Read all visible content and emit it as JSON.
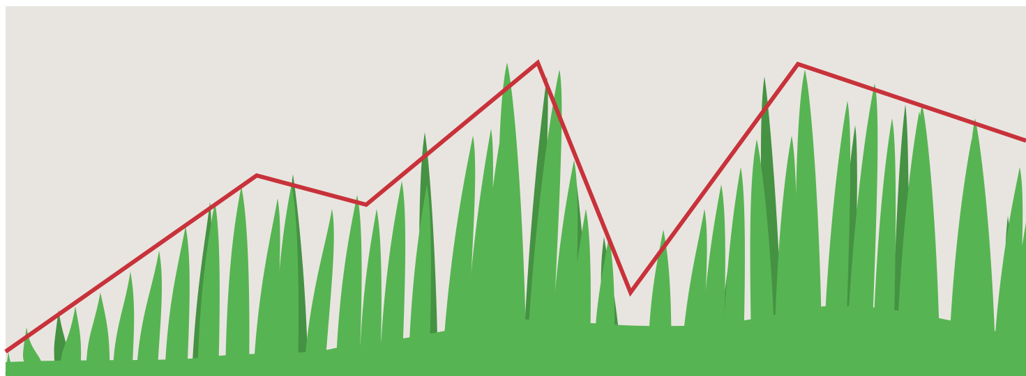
{
  "colors": {
    "page": "#ffffff",
    "sky": "#e8e5e0",
    "grass_light": "#57b452",
    "grass_dark": "#459243",
    "trend_line": "#c8323a"
  },
  "icon": "grass-with-trend-line-illustration"
}
